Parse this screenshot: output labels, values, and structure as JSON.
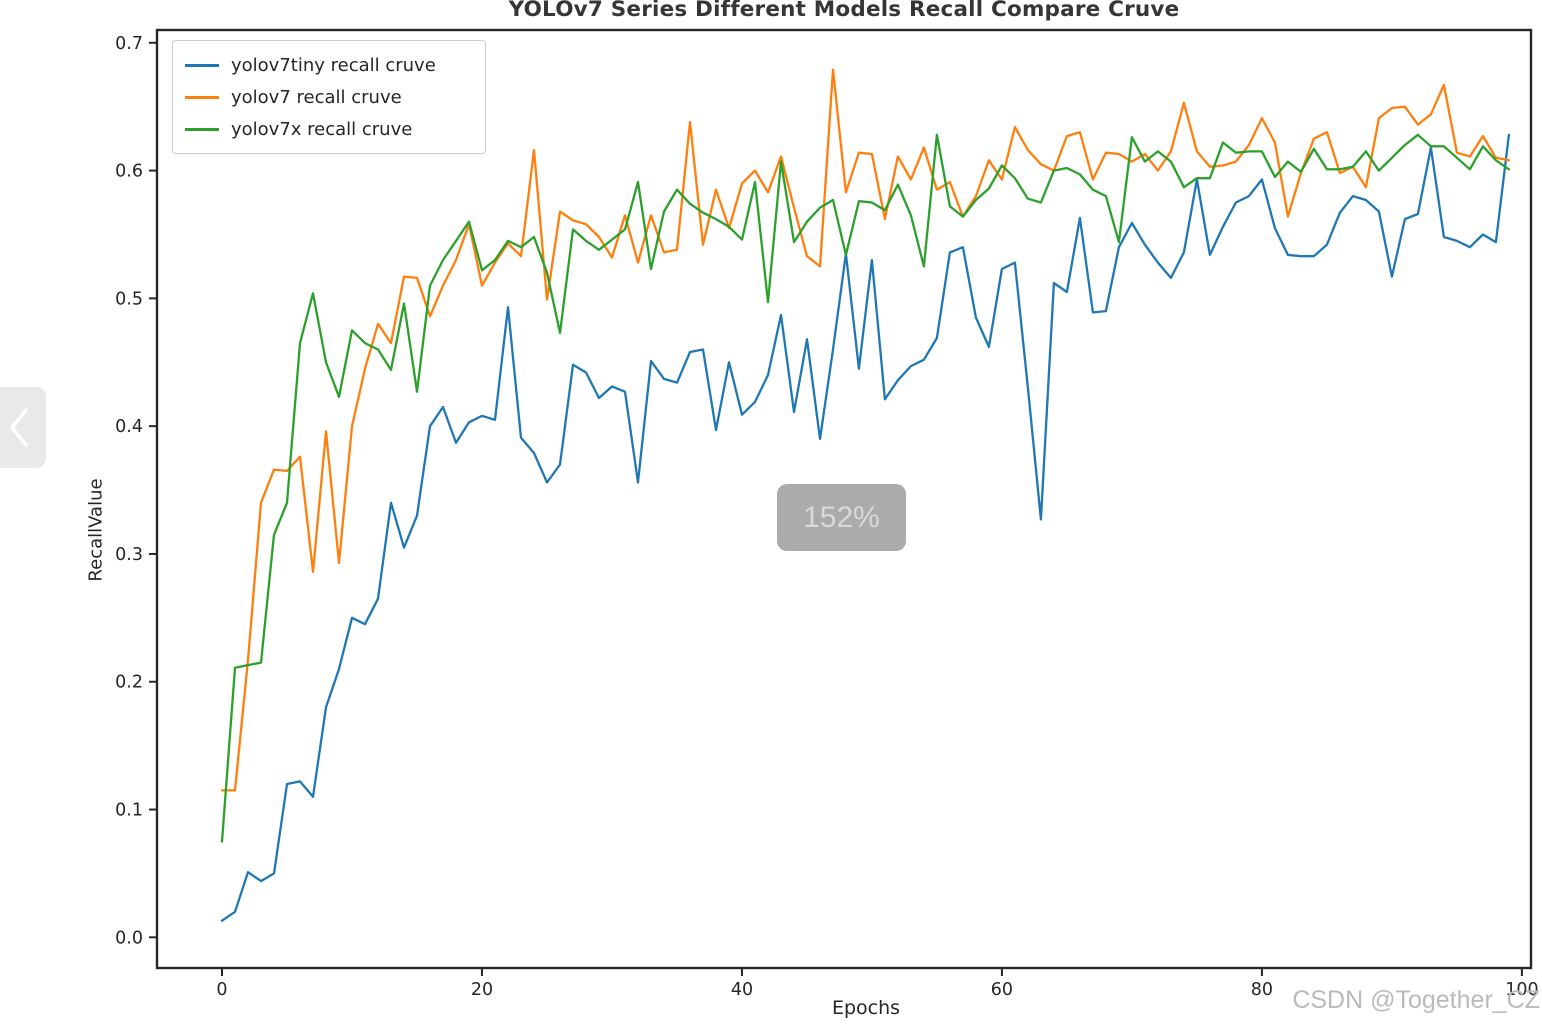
{
  "window": {
    "background": "#ffffff"
  },
  "nav_button": {
    "chevron": "left"
  },
  "zoom_badge": {
    "label": "152%"
  },
  "watermark": {
    "text": "CSDN @Together_CZ"
  },
  "chart_data": {
    "type": "line",
    "title": "YOLOv7 Series Different Models Recall Compare Cruve",
    "xlabel": "Epochs",
    "ylabel": "RecallValue",
    "x_ticks": [
      0,
      20,
      40,
      60,
      80,
      100
    ],
    "y_ticks": [
      0.0,
      0.1,
      0.2,
      0.3,
      0.4,
      0.5,
      0.6,
      0.7
    ],
    "xlim": [
      -5,
      100.7
    ],
    "ylim": [
      -0.024,
      0.71
    ],
    "grid": false,
    "legend_position": "upper left",
    "x_start": 0,
    "x_step": 1,
    "axis_color": "#262626",
    "series": [
      {
        "name": "yolov7tiny recall cruve",
        "color": "#1f77b4",
        "values": [
          0.013,
          0.02,
          0.051,
          0.044,
          0.05,
          0.12,
          0.122,
          0.11,
          0.18,
          0.21,
          0.25,
          0.245,
          0.265,
          0.34,
          0.305,
          0.33,
          0.4,
          0.415,
          0.387,
          0.403,
          0.408,
          0.405,
          0.493,
          0.391,
          0.379,
          0.356,
          0.37,
          0.448,
          0.442,
          0.422,
          0.431,
          0.427,
          0.356,
          0.451,
          0.437,
          0.434,
          0.458,
          0.46,
          0.397,
          0.45,
          0.409,
          0.419,
          0.44,
          0.487,
          0.411,
          0.468,
          0.39,
          0.46,
          0.535,
          0.445,
          0.53,
          0.421,
          0.436,
          0.447,
          0.452,
          0.469,
          0.536,
          0.54,
          0.485,
          0.462,
          0.523,
          0.528,
          0.43,
          0.327,
          0.512,
          0.505,
          0.563,
          0.489,
          0.49,
          0.54,
          0.559,
          0.542,
          0.528,
          0.516,
          0.536,
          0.593,
          0.534,
          0.556,
          0.575,
          0.58,
          0.593,
          0.555,
          0.534,
          0.533,
          0.533,
          0.542,
          0.567,
          0.58,
          0.577,
          0.568,
          0.517,
          0.562,
          0.566,
          0.618,
          0.548,
          0.545,
          0.54,
          0.55,
          0.544,
          0.628
        ]
      },
      {
        "name": "yolov7 recall cruve",
        "color": "#ff7f0e",
        "values": [
          0.115,
          0.115,
          0.217,
          0.34,
          0.366,
          0.365,
          0.376,
          0.286,
          0.396,
          0.293,
          0.4,
          0.445,
          0.48,
          0.465,
          0.517,
          0.516,
          0.486,
          0.51,
          0.53,
          0.558,
          0.51,
          0.528,
          0.543,
          0.533,
          0.616,
          0.499,
          0.568,
          0.561,
          0.558,
          0.548,
          0.532,
          0.565,
          0.528,
          0.565,
          0.536,
          0.538,
          0.638,
          0.542,
          0.585,
          0.555,
          0.59,
          0.6,
          0.583,
          0.611,
          0.571,
          0.533,
          0.525,
          0.679,
          0.583,
          0.614,
          0.613,
          0.562,
          0.611,
          0.593,
          0.618,
          0.585,
          0.591,
          0.564,
          0.58,
          0.608,
          0.593,
          0.634,
          0.616,
          0.605,
          0.6,
          0.627,
          0.63,
          0.593,
          0.614,
          0.613,
          0.607,
          0.613,
          0.6,
          0.615,
          0.653,
          0.615,
          0.603,
          0.604,
          0.607,
          0.62,
          0.641,
          0.622,
          0.564,
          0.598,
          0.625,
          0.63,
          0.598,
          0.603,
          0.587,
          0.641,
          0.649,
          0.65,
          0.636,
          0.644,
          0.667,
          0.614,
          0.611,
          0.627,
          0.61,
          0.608
        ]
      },
      {
        "name": "yolov7x recall cruve",
        "color": "#2ca02c",
        "values": [
          0.075,
          0.211,
          0.213,
          0.215,
          0.315,
          0.34,
          0.465,
          0.504,
          0.45,
          0.423,
          0.475,
          0.465,
          0.46,
          0.444,
          0.496,
          0.427,
          0.51,
          0.53,
          0.545,
          0.56,
          0.522,
          0.53,
          0.545,
          0.54,
          0.548,
          0.52,
          0.473,
          0.554,
          0.545,
          0.538,
          0.546,
          0.554,
          0.591,
          0.523,
          0.568,
          0.585,
          0.574,
          0.567,
          0.562,
          0.556,
          0.546,
          0.591,
          0.497,
          0.607,
          0.544,
          0.56,
          0.571,
          0.577,
          0.534,
          0.576,
          0.575,
          0.569,
          0.589,
          0.565,
          0.525,
          0.628,
          0.572,
          0.564,
          0.577,
          0.586,
          0.604,
          0.594,
          0.578,
          0.575,
          0.6,
          0.602,
          0.597,
          0.585,
          0.58,
          0.544,
          0.626,
          0.607,
          0.615,
          0.607,
          0.587,
          0.594,
          0.594,
          0.622,
          0.614,
          0.615,
          0.615,
          0.595,
          0.607,
          0.599,
          0.617,
          0.601,
          0.601,
          0.603,
          0.615,
          0.6,
          0.61,
          0.62,
          0.628,
          0.619,
          0.619,
          0.61,
          0.601,
          0.619,
          0.608,
          0.601
        ]
      }
    ]
  }
}
